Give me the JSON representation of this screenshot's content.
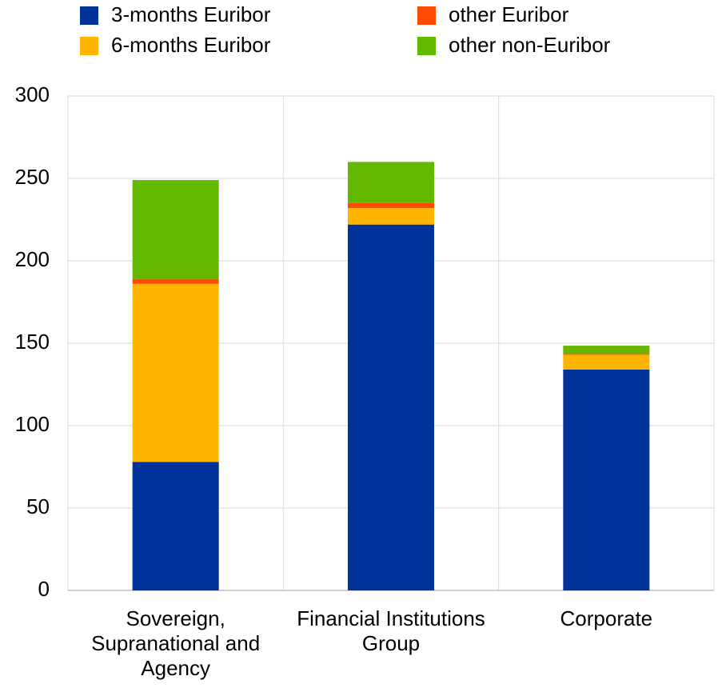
{
  "chart_data": {
    "type": "stacked_bar",
    "categories": [
      "Sovereign, Supranational and Agency",
      "Financial Institutions Group",
      "Corporate"
    ],
    "series": [
      {
        "name": "3-months Euribor",
        "color": "#003299",
        "values": [
          78,
          222,
          134
        ]
      },
      {
        "name": "6-months Euribor",
        "color": "#ffb400",
        "values": [
          108,
          10,
          9
        ]
      },
      {
        "name": "other Euribor",
        "color": "#ff4b00",
        "values": [
          3,
          3,
          0.5
        ]
      },
      {
        "name": "other non-Euribor",
        "color": "#65b800",
        "values": [
          60,
          25,
          5
        ]
      }
    ],
    "ylim": [
      0,
      300
    ],
    "yticks": [
      0,
      50,
      100,
      150,
      200,
      250,
      300
    ],
    "grid": true
  }
}
